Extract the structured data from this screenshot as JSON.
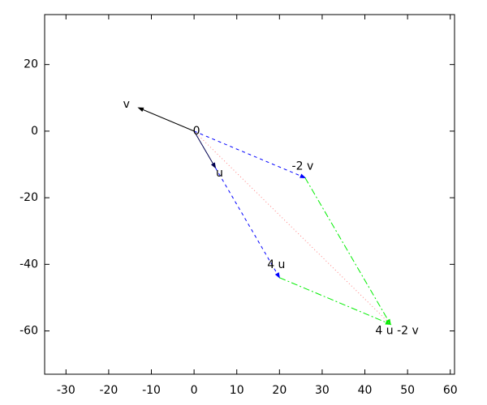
{
  "chart_data": {
    "type": "vector",
    "xlim": [
      -35,
      61
    ],
    "ylim": [
      -73,
      35
    ],
    "xticks": [
      -30,
      -20,
      -10,
      0,
      10,
      20,
      30,
      40,
      50,
      60
    ],
    "yticks": [
      -60,
      -40,
      -20,
      0,
      20
    ],
    "segments": [
      {
        "x": [
          0,
          -13
        ],
        "y": [
          0,
          7
        ],
        "color": "#000000",
        "style": "solid",
        "arrow": true
      },
      {
        "x": [
          0,
          5
        ],
        "y": [
          0,
          -11
        ],
        "color": "#000050",
        "style": "solid",
        "arrow": true
      },
      {
        "x": [
          0,
          26
        ],
        "y": [
          0,
          -14
        ],
        "color": "#0000ff",
        "style": "dashed",
        "arrow": true
      },
      {
        "x": [
          5,
          20
        ],
        "y": [
          -11,
          -44
        ],
        "color": "#0000ff",
        "style": "dashed",
        "arrow": true
      },
      {
        "x": [
          26,
          46
        ],
        "y": [
          -14,
          -58
        ],
        "color": "#00ee00",
        "style": "dashdot",
        "arrow": true
      },
      {
        "x": [
          20,
          46
        ],
        "y": [
          -44,
          -58
        ],
        "color": "#00ee00",
        "style": "dashdot",
        "arrow": true
      },
      {
        "x": [
          0,
          46
        ],
        "y": [
          0,
          -58
        ],
        "color": "#ff8080",
        "style": "dotted",
        "arrow": false
      }
    ],
    "labels": [
      {
        "text": "0",
        "x": 0,
        "y": 0
      },
      {
        "text": "v",
        "x": -13,
        "y": 7
      },
      {
        "text": "u",
        "x": 5,
        "y": -11
      },
      {
        "text": "-2 v",
        "x": 26,
        "y": -14
      },
      {
        "text": "4 u",
        "x": 20,
        "y": -44
      },
      {
        "text": "4 u -2 v",
        "x": 46,
        "y": -58
      }
    ]
  }
}
